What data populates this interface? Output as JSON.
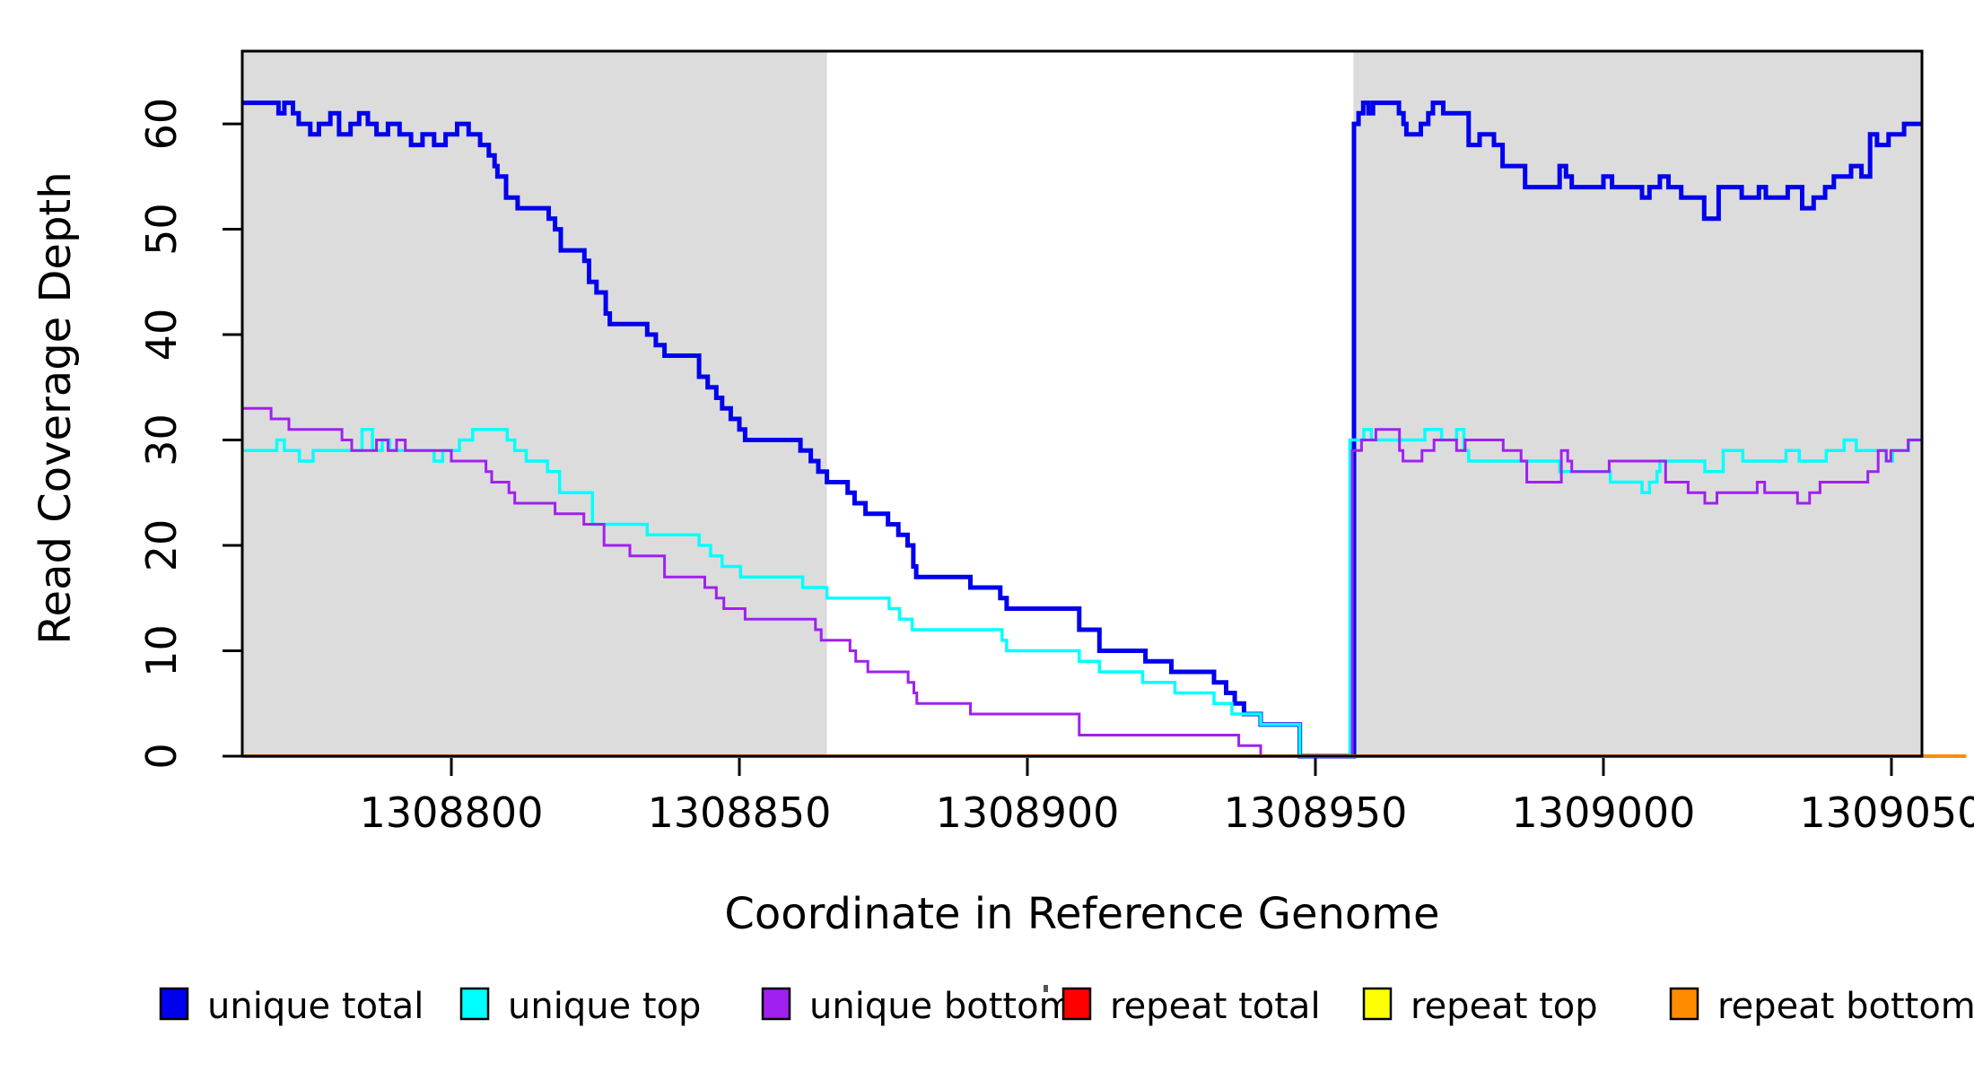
{
  "chart_data": {
    "type": "line",
    "step": "after",
    "title": "",
    "xlabel": "Coordinate in Reference Genome",
    "ylabel": "Read Coverage Depth",
    "xlim": [
      1308763.7,
      1309055.3
    ],
    "ylim": [
      0,
      66.9
    ],
    "xticks": [
      1308800,
      1308850,
      1308900,
      1308950,
      1309000,
      1309050
    ],
    "yticks": [
      0,
      10,
      20,
      30,
      40,
      50,
      60
    ],
    "grid": false,
    "legend_position": "bottom",
    "background_color": "#FFFFFF",
    "shade_color": "#DCDCDC",
    "shaded_regions": [
      {
        "x0": 1308763.7,
        "x1": 1308865.2
      },
      {
        "x0": 1308956.6,
        "x1": 1309055.3
      }
    ],
    "series": [
      {
        "name": "unique-total",
        "label": "unique total",
        "color": "#0000EE",
        "line_width": 5,
        "points": [
          [
            1308763.7,
            62
          ],
          [
            1308770,
            61
          ],
          [
            1308771,
            62
          ],
          [
            1308772.5,
            61
          ],
          [
            1308773.5,
            60
          ],
          [
            1308775.5,
            59
          ],
          [
            1308777,
            60
          ],
          [
            1308779,
            61
          ],
          [
            1308780.5,
            59
          ],
          [
            1308782.5,
            60
          ],
          [
            1308784,
            61
          ],
          [
            1308785.5,
            60
          ],
          [
            1308787,
            59
          ],
          [
            1308789,
            60
          ],
          [
            1308791,
            59
          ],
          [
            1308793,
            58
          ],
          [
            1308795,
            59
          ],
          [
            1308797,
            58
          ],
          [
            1308799,
            59
          ],
          [
            1308801,
            60
          ],
          [
            1308803,
            59
          ],
          [
            1308805,
            58
          ],
          [
            1308806.5,
            57
          ],
          [
            1308807.5,
            56
          ],
          [
            1308808,
            55
          ],
          [
            1308809.5,
            53
          ],
          [
            1308811.5,
            52
          ],
          [
            1308816.9,
            51
          ],
          [
            1308818,
            50
          ],
          [
            1308819,
            48
          ],
          [
            1308823.1,
            47
          ],
          [
            1308823.9,
            45
          ],
          [
            1308825.2,
            44
          ],
          [
            1308826.8,
            42
          ],
          [
            1308827.5,
            41
          ],
          [
            1308834,
            40
          ],
          [
            1308835.5,
            39
          ],
          [
            1308837,
            38
          ],
          [
            1308843,
            36
          ],
          [
            1308844.5,
            35
          ],
          [
            1308846,
            34
          ],
          [
            1308847,
            33
          ],
          [
            1308848.5,
            32
          ],
          [
            1308850,
            31
          ],
          [
            1308851,
            30
          ],
          [
            1308860.6,
            29
          ],
          [
            1308862.4,
            28
          ],
          [
            1308863.7,
            27
          ],
          [
            1308865.2,
            26
          ],
          [
            1308868.8,
            25
          ],
          [
            1308870,
            24
          ],
          [
            1308871.9,
            23
          ],
          [
            1308875.8,
            22
          ],
          [
            1308877.6,
            21
          ],
          [
            1308879.2,
            20
          ],
          [
            1308880.2,
            18
          ],
          [
            1308880.7,
            17
          ],
          [
            1308890.1,
            16
          ],
          [
            1308895.3,
            15
          ],
          [
            1308896.4,
            14
          ],
          [
            1308909,
            12
          ],
          [
            1308912.5,
            10
          ],
          [
            1308920.5,
            9
          ],
          [
            1308925,
            8
          ],
          [
            1308932.4,
            7
          ],
          [
            1308934.5,
            6
          ],
          [
            1308936,
            5
          ],
          [
            1308937.6,
            4
          ],
          [
            1308940.5,
            3
          ],
          [
            1308947.3,
            0
          ],
          [
            1308956.7,
            60
          ],
          [
            1308957.5,
            61
          ],
          [
            1308958.3,
            62
          ],
          [
            1308959.2,
            61
          ],
          [
            1308960,
            62
          ],
          [
            1308964.5,
            61
          ],
          [
            1308965.3,
            60
          ],
          [
            1308965.8,
            59
          ],
          [
            1308968.3,
            60
          ],
          [
            1308969.6,
            61
          ],
          [
            1308970.4,
            62
          ],
          [
            1308972.2,
            61
          ],
          [
            1308976.6,
            58
          ],
          [
            1308978.5,
            59
          ],
          [
            1308981,
            58
          ],
          [
            1308982.5,
            56
          ],
          [
            1308986.4,
            54
          ],
          [
            1308992.4,
            56
          ],
          [
            1308993.5,
            55
          ],
          [
            1308994.5,
            54
          ],
          [
            1309000,
            55
          ],
          [
            1309001.5,
            54
          ],
          [
            1309006.7,
            53
          ],
          [
            1309008,
            54
          ],
          [
            1309009.8,
            55
          ],
          [
            1309011.3,
            54
          ],
          [
            1309013.5,
            53
          ],
          [
            1309017.5,
            51
          ],
          [
            1309020,
            54
          ],
          [
            1309024,
            53
          ],
          [
            1309027,
            54
          ],
          [
            1309028.2,
            53
          ],
          [
            1309032,
            54
          ],
          [
            1309034.5,
            52
          ],
          [
            1309036.5,
            53
          ],
          [
            1309038.5,
            54
          ],
          [
            1309040,
            55
          ],
          [
            1309043,
            56
          ],
          [
            1309044.8,
            55
          ],
          [
            1309046.3,
            59
          ],
          [
            1309047.5,
            58
          ],
          [
            1309049.5,
            59
          ],
          [
            1309052.2,
            60
          ],
          [
            1309055.3,
            60
          ]
        ]
      },
      {
        "name": "unique-top",
        "label": "unique top",
        "color": "#00FFFF",
        "line_width": 3.5,
        "points": [
          [
            1308763.7,
            29
          ],
          [
            1308769.7,
            30
          ],
          [
            1308771,
            29
          ],
          [
            1308773.6,
            28
          ],
          [
            1308776,
            29
          ],
          [
            1308784.5,
            31
          ],
          [
            1308786.3,
            29
          ],
          [
            1308788,
            30
          ],
          [
            1308789.3,
            29
          ],
          [
            1308797,
            28
          ],
          [
            1308798.5,
            29
          ],
          [
            1308801.4,
            30
          ],
          [
            1308803.7,
            31
          ],
          [
            1308809.7,
            30
          ],
          [
            1308811,
            29
          ],
          [
            1308813,
            28
          ],
          [
            1308816.7,
            27
          ],
          [
            1308818.8,
            25
          ],
          [
            1308824.5,
            22
          ],
          [
            1308834,
            21
          ],
          [
            1308843,
            20
          ],
          [
            1308845,
            19
          ],
          [
            1308847,
            18
          ],
          [
            1308850.2,
            17
          ],
          [
            1308861,
            16
          ],
          [
            1308865.2,
            15
          ],
          [
            1308876,
            14
          ],
          [
            1308877.8,
            13
          ],
          [
            1308880,
            12
          ],
          [
            1308895.6,
            11
          ],
          [
            1308896.4,
            10
          ],
          [
            1308909,
            9
          ],
          [
            1308912.5,
            8
          ],
          [
            1308920,
            7
          ],
          [
            1308925.6,
            6
          ],
          [
            1308932.4,
            5
          ],
          [
            1308935.5,
            4
          ],
          [
            1308940.5,
            3
          ],
          [
            1308947.3,
            0
          ],
          [
            1308956,
            30
          ],
          [
            1308958.4,
            31
          ],
          [
            1308959.7,
            30
          ],
          [
            1308969,
            31
          ],
          [
            1308971.9,
            30
          ],
          [
            1308974.5,
            31
          ],
          [
            1308975.8,
            29
          ],
          [
            1308976.6,
            28
          ],
          [
            1308992.4,
            27
          ],
          [
            1309001.2,
            26
          ],
          [
            1309006.7,
            25
          ],
          [
            1309008,
            26
          ],
          [
            1309009.3,
            27
          ],
          [
            1309009.8,
            28
          ],
          [
            1309017.6,
            27
          ],
          [
            1309020.8,
            29
          ],
          [
            1309024.2,
            28
          ],
          [
            1309031.7,
            29
          ],
          [
            1309034,
            28
          ],
          [
            1309038.7,
            29
          ],
          [
            1309041.8,
            30
          ],
          [
            1309043.9,
            29
          ],
          [
            1309049.1,
            28
          ],
          [
            1309050.2,
            29
          ],
          [
            1309053,
            30
          ],
          [
            1309055.3,
            30
          ]
        ]
      },
      {
        "name": "unique-bottom",
        "label": "unique bottom",
        "color": "#A020F0",
        "line_width": 3,
        "points": [
          [
            1308763.7,
            33
          ],
          [
            1308768.7,
            32
          ],
          [
            1308771.8,
            31
          ],
          [
            1308781,
            30
          ],
          [
            1308782.7,
            29
          ],
          [
            1308787,
            30
          ],
          [
            1308789,
            29
          ],
          [
            1308790.5,
            30
          ],
          [
            1308792,
            29
          ],
          [
            1308800,
            28
          ],
          [
            1308806,
            27
          ],
          [
            1308807,
            26
          ],
          [
            1308810,
            25
          ],
          [
            1308811,
            24
          ],
          [
            1308818,
            23
          ],
          [
            1308823,
            22
          ],
          [
            1308826.5,
            20
          ],
          [
            1308831,
            19
          ],
          [
            1308837,
            17
          ],
          [
            1308844,
            16
          ],
          [
            1308846,
            15
          ],
          [
            1308847.3,
            14
          ],
          [
            1308851,
            13
          ],
          [
            1308863.2,
            12
          ],
          [
            1308864.2,
            11
          ],
          [
            1308869.2,
            10
          ],
          [
            1308870.2,
            9
          ],
          [
            1308872.3,
            8
          ],
          [
            1308879.3,
            7
          ],
          [
            1308880.3,
            6
          ],
          [
            1308880.8,
            5
          ],
          [
            1308890.1,
            4
          ],
          [
            1308909,
            2
          ],
          [
            1308936.7,
            1
          ],
          [
            1308940.5,
            0
          ],
          [
            1308956.4,
            29
          ],
          [
            1308958,
            30
          ],
          [
            1308960.5,
            31
          ],
          [
            1308964.6,
            29
          ],
          [
            1308965.2,
            28
          ],
          [
            1308968.5,
            29
          ],
          [
            1308970.6,
            30
          ],
          [
            1308974.5,
            29
          ],
          [
            1308976,
            30
          ],
          [
            1308982.6,
            29
          ],
          [
            1308985.7,
            28
          ],
          [
            1308986.7,
            26
          ],
          [
            1308992.7,
            29
          ],
          [
            1308993.8,
            28
          ],
          [
            1308994.5,
            27
          ],
          [
            1309001,
            28
          ],
          [
            1309010.8,
            26
          ],
          [
            1309014.7,
            25
          ],
          [
            1309017.6,
            24
          ],
          [
            1309019.7,
            25
          ],
          [
            1309026.7,
            26
          ],
          [
            1309028,
            25
          ],
          [
            1309033.7,
            24
          ],
          [
            1309035.8,
            25
          ],
          [
            1309037.6,
            26
          ],
          [
            1309045.9,
            27
          ],
          [
            1309047.7,
            29
          ],
          [
            1309049.1,
            28
          ],
          [
            1309049.9,
            29
          ],
          [
            1309052.9,
            30
          ],
          [
            1309055.3,
            30
          ]
        ]
      },
      {
        "name": "repeat-total",
        "label": "repeat total",
        "color": "#FF0000",
        "line_width": 3,
        "points": [
          [
            1308763.7,
            0
          ],
          [
            1309055.3,
            0
          ]
        ]
      },
      {
        "name": "repeat-top",
        "label": "repeat top",
        "color": "#FFFF00",
        "line_width": 3,
        "points": [
          [
            1308763.7,
            0
          ],
          [
            1309055.3,
            0
          ]
        ]
      },
      {
        "name": "repeat-bottom",
        "label": "repeat bottom",
        "color": "#FF8C00",
        "line_width": 4,
        "points": [
          [
            1308763.7,
            0
          ],
          [
            1309063,
            0
          ]
        ]
      }
    ],
    "legend": [
      {
        "label": "unique total",
        "color": "#0000EE"
      },
      {
        "label": "unique top",
        "color": "#00FFFF"
      },
      {
        "label": "unique bottom",
        "color": "#A020F0"
      },
      {
        "label": "repeat total",
        "color": "#FF0000"
      },
      {
        "label": "repeat top",
        "color": "#FFFF00"
      },
      {
        "label": "repeat bottom",
        "color": "#FF8C00"
      }
    ],
    "swatch_border_color": "#000000"
  }
}
